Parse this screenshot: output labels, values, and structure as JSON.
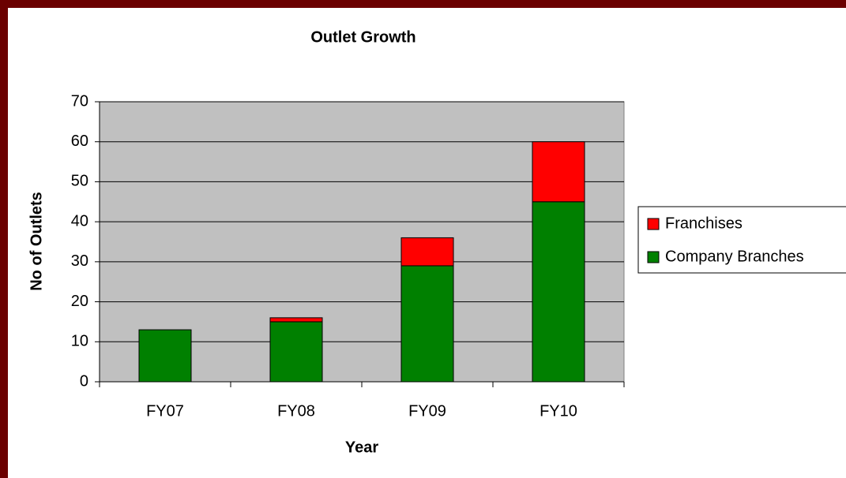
{
  "chart_data": {
    "type": "stacked_bar",
    "title": "Outlet Growth",
    "x_label": "Year",
    "y_label": "No of Outlets",
    "categories": [
      "FY07",
      "FY08",
      "FY09",
      "FY10"
    ],
    "series": [
      {
        "name": "Company Branches",
        "color": "#008000",
        "values": [
          13,
          15,
          29,
          45
        ]
      },
      {
        "name": "Franchises",
        "color": "#ff0000",
        "values": [
          0,
          1,
          7,
          15
        ]
      }
    ],
    "ylim": [
      0,
      70
    ],
    "yticks": [
      0,
      10,
      20,
      30,
      40,
      50,
      60,
      70
    ],
    "grid": true,
    "legend": "right"
  }
}
